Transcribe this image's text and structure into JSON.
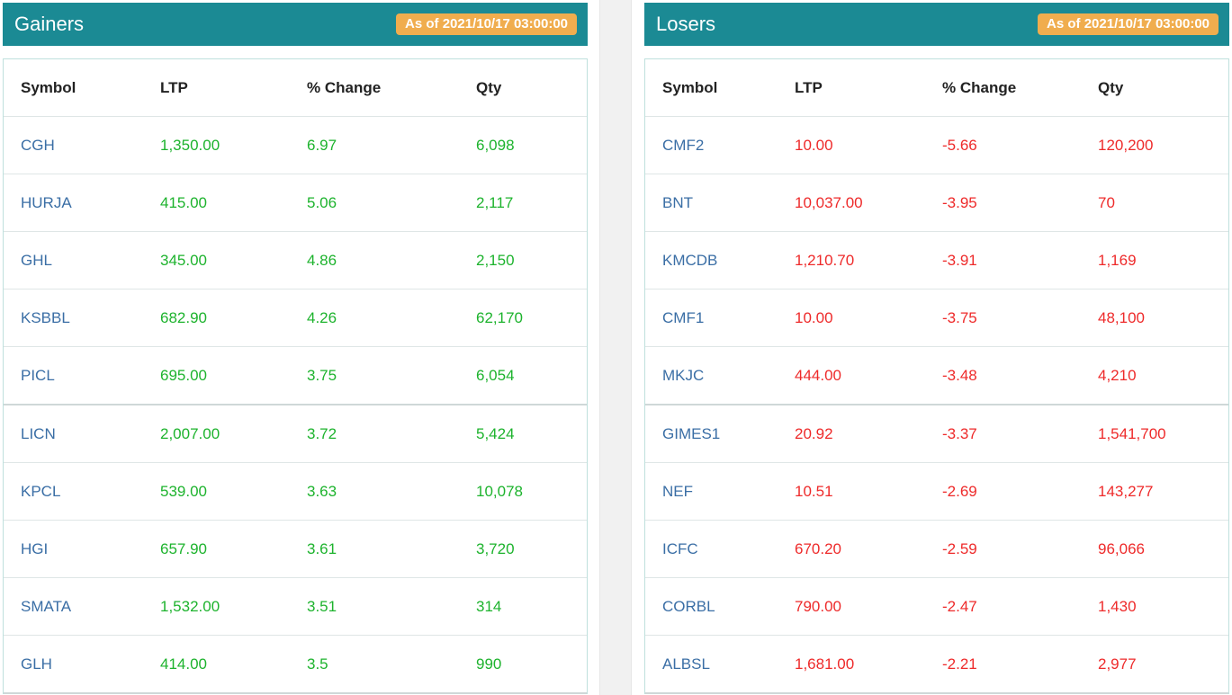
{
  "gainers": {
    "title": "Gainers",
    "as_of": "As of 2021/10/17 03:00:00",
    "columns": [
      "Symbol",
      "LTP",
      "% Change",
      "Qty"
    ],
    "rows": [
      [
        "CGH",
        "1,350.00",
        "6.97",
        "6,098"
      ],
      [
        "HURJA",
        "415.00",
        "5.06",
        "2,117"
      ],
      [
        "GHL",
        "345.00",
        "4.86",
        "2,150"
      ],
      [
        "KSBBL",
        "682.90",
        "4.26",
        "62,170"
      ],
      [
        "PICL",
        "695.00",
        "3.75",
        "6,054"
      ],
      [
        "LICN",
        "2,007.00",
        "3.72",
        "5,424"
      ],
      [
        "KPCL",
        "539.00",
        "3.63",
        "10,078"
      ],
      [
        "HGI",
        "657.90",
        "3.61",
        "3,720"
      ],
      [
        "SMATA",
        "1,532.00",
        "3.51",
        "314"
      ],
      [
        "GLH",
        "414.00",
        "3.5",
        "990"
      ]
    ]
  },
  "losers": {
    "title": "Losers",
    "as_of": "As of 2021/10/17 03:00:00",
    "columns": [
      "Symbol",
      "LTP",
      "% Change",
      "Qty"
    ],
    "rows": [
      [
        "CMF2",
        "10.00",
        "-5.66",
        "120,200"
      ],
      [
        "BNT",
        "10,037.00",
        "-3.95",
        "70"
      ],
      [
        "KMCDB",
        "1,210.70",
        "-3.91",
        "1,169"
      ],
      [
        "CMF1",
        "10.00",
        "-3.75",
        "48,100"
      ],
      [
        "MKJC",
        "444.00",
        "-3.48",
        "4,210"
      ],
      [
        "GIMES1",
        "20.92",
        "-3.37",
        "1,541,700"
      ],
      [
        "NEF",
        "10.51",
        "-2.69",
        "143,277"
      ],
      [
        "ICFC",
        "670.20",
        "-2.59",
        "96,066"
      ],
      [
        "CORBL",
        "790.00",
        "-2.47",
        "1,430"
      ],
      [
        "ALBSL",
        "1,681.00",
        "-2.21",
        "2,977"
      ]
    ]
  },
  "colors": {
    "header_bg": "#1b8a94",
    "badge_bg": "#f0ad4e",
    "symbol": "#3a6ea5",
    "gain": "#1db32d",
    "loss": "#ee2a2a"
  }
}
